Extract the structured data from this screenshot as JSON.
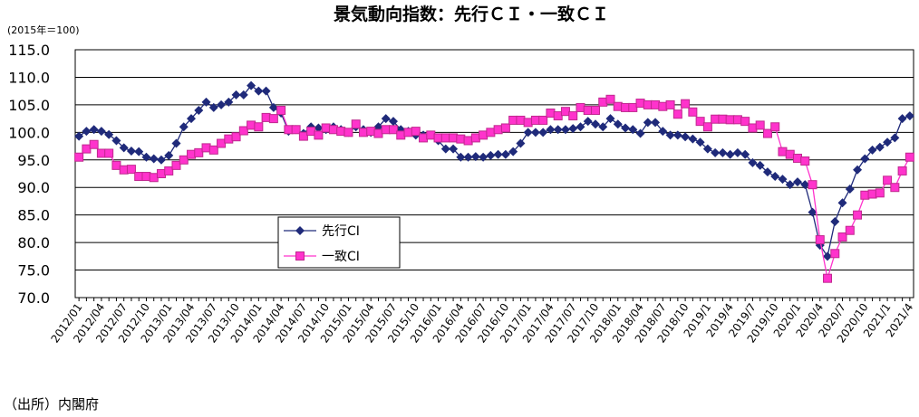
{
  "chart_data": {
    "type": "line",
    "title": "景気動向指数：先行ＣＩ・一致ＣＩ",
    "subtitle": "(2015年＝100)",
    "source": "（出所）内閣府",
    "categories": [
      "2012/01",
      null,
      null,
      "2012/04",
      null,
      null,
      "2012/07",
      null,
      null,
      "2012/10",
      null,
      null,
      "2013/01",
      null,
      null,
      "2013/04",
      null,
      null,
      "2013/07",
      null,
      null,
      "2013/10",
      null,
      null,
      "2014/01",
      null,
      null,
      "2014/04",
      null,
      null,
      "2014/07",
      null,
      null,
      "2014/10",
      null,
      null,
      "2015/01",
      null,
      null,
      "2015/04",
      null,
      null,
      "2015/07",
      null,
      null,
      "2015/10",
      null,
      null,
      "2016/01",
      null,
      null,
      "2016/04",
      null,
      null,
      "2016/07",
      null,
      null,
      "2016/10",
      null,
      null,
      "2017/01",
      null,
      null,
      "2017/04",
      null,
      null,
      "2017/07",
      null,
      null,
      "2017/10",
      null,
      null,
      "2018/01",
      null,
      null,
      "2018/04",
      null,
      null,
      "2018/07",
      null,
      null,
      "2018/10",
      null,
      null,
      "2019/1",
      null,
      null,
      "2019/4",
      null,
      null,
      "2019/7",
      null,
      null,
      "2019/10",
      null,
      null,
      "2020/1",
      null,
      null,
      "2020/4",
      null,
      null,
      "2020/7",
      null,
      null,
      "2020/10",
      null,
      null,
      "2021/1",
      null,
      null,
      "2021/4"
    ],
    "series": [
      {
        "name": "先行CI",
        "color": "#1f2a7a",
        "marker": "diamond",
        "values": [
          99.3,
          100.2,
          100.5,
          100.2,
          99.6,
          98.5,
          97.2,
          96.6,
          96.5,
          95.5,
          95.2,
          95.0,
          95.8,
          98.0,
          101.0,
          102.5,
          104.0,
          105.5,
          104.5,
          105.0,
          105.5,
          106.8,
          106.8,
          108.5,
          107.5,
          107.5,
          104.5,
          103.5,
          100.2,
          100.5,
          99.8,
          101.0,
          100.8,
          100.5,
          101.0,
          100.5,
          100.0,
          101.0,
          100.5,
          100.0,
          101.0,
          102.5,
          102.0,
          100.5,
          100.2,
          99.5,
          99.5,
          99.5,
          98.5,
          97.0,
          97.0,
          95.5,
          95.5,
          95.6,
          95.5,
          95.8,
          96.0,
          96.0,
          96.5,
          98.0,
          100.0,
          100.0,
          100.0,
          100.5,
          100.5,
          100.5,
          100.7,
          101.0,
          102.0,
          101.5,
          101.0,
          102.5,
          101.5,
          100.8,
          100.5,
          99.8,
          101.8,
          101.8,
          100.2,
          99.5,
          99.5,
          99.2,
          98.8,
          98.2,
          97.0,
          96.3,
          96.3,
          96.0,
          96.3,
          96.0,
          94.5,
          94.0,
          92.8,
          92.0,
          91.5,
          90.5,
          91.0,
          90.5,
          85.5,
          79.5,
          77.5,
          83.8,
          87.2,
          89.7,
          93.2,
          95.2,
          96.8,
          97.3,
          98.2,
          99.0,
          102.5,
          103.0
        ]
      },
      {
        "name": "一致CI",
        "color": "#ff33cc",
        "marker": "square",
        "values": [
          95.5,
          97.0,
          97.8,
          96.2,
          96.2,
          94.0,
          93.2,
          93.3,
          92.0,
          92.0,
          91.8,
          92.5,
          93.0,
          94.0,
          95.0,
          96.0,
          96.3,
          97.2,
          96.8,
          98.0,
          98.8,
          99.2,
          100.3,
          101.3,
          101.0,
          102.7,
          102.5,
          104.0,
          100.5,
          100.5,
          99.3,
          100.2,
          99.5,
          100.8,
          100.5,
          100.2,
          100.0,
          101.5,
          100.0,
          100.2,
          99.8,
          100.5,
          100.5,
          99.5,
          100.0,
          100.2,
          99.0,
          99.5,
          99.0,
          99.0,
          99.0,
          98.8,
          98.5,
          99.0,
          99.5,
          100.0,
          100.5,
          100.8,
          102.2,
          102.2,
          101.8,
          102.2,
          102.2,
          103.5,
          103.0,
          103.8,
          103.0,
          104.5,
          104.0,
          104.0,
          105.5,
          106.0,
          104.7,
          104.5,
          104.5,
          105.3,
          105.0,
          105.0,
          104.7,
          105.0,
          103.3,
          105.2,
          103.7,
          102.0,
          101.0,
          102.4,
          102.4,
          102.3,
          102.3,
          102.0,
          100.8,
          101.3,
          99.8,
          101.0,
          96.5,
          96.0,
          95.3,
          94.8,
          90.5,
          80.5,
          73.5,
          78.0,
          81.0,
          82.2,
          85.0,
          88.6,
          88.8,
          89.0,
          91.3,
          90.0,
          93.0,
          95.5
        ]
      }
    ],
    "ylim": [
      70,
      115
    ],
    "yticks": [
      {
        "value": 70,
        "label": "70.0"
      },
      {
        "value": 75,
        "label": "75.0"
      },
      {
        "value": 80,
        "label": "80.0"
      },
      {
        "value": 85,
        "label": "85.0"
      },
      {
        "value": 90,
        "label": "90.0"
      },
      {
        "value": 95,
        "label": "95.0"
      },
      {
        "value": 100,
        "label": "100.0"
      },
      {
        "value": 105,
        "label": "105.0"
      },
      {
        "value": 110,
        "label": "110.0"
      },
      {
        "value": 115,
        "label": "115.0"
      }
    ],
    "grid": true,
    "legend": "center-left"
  }
}
